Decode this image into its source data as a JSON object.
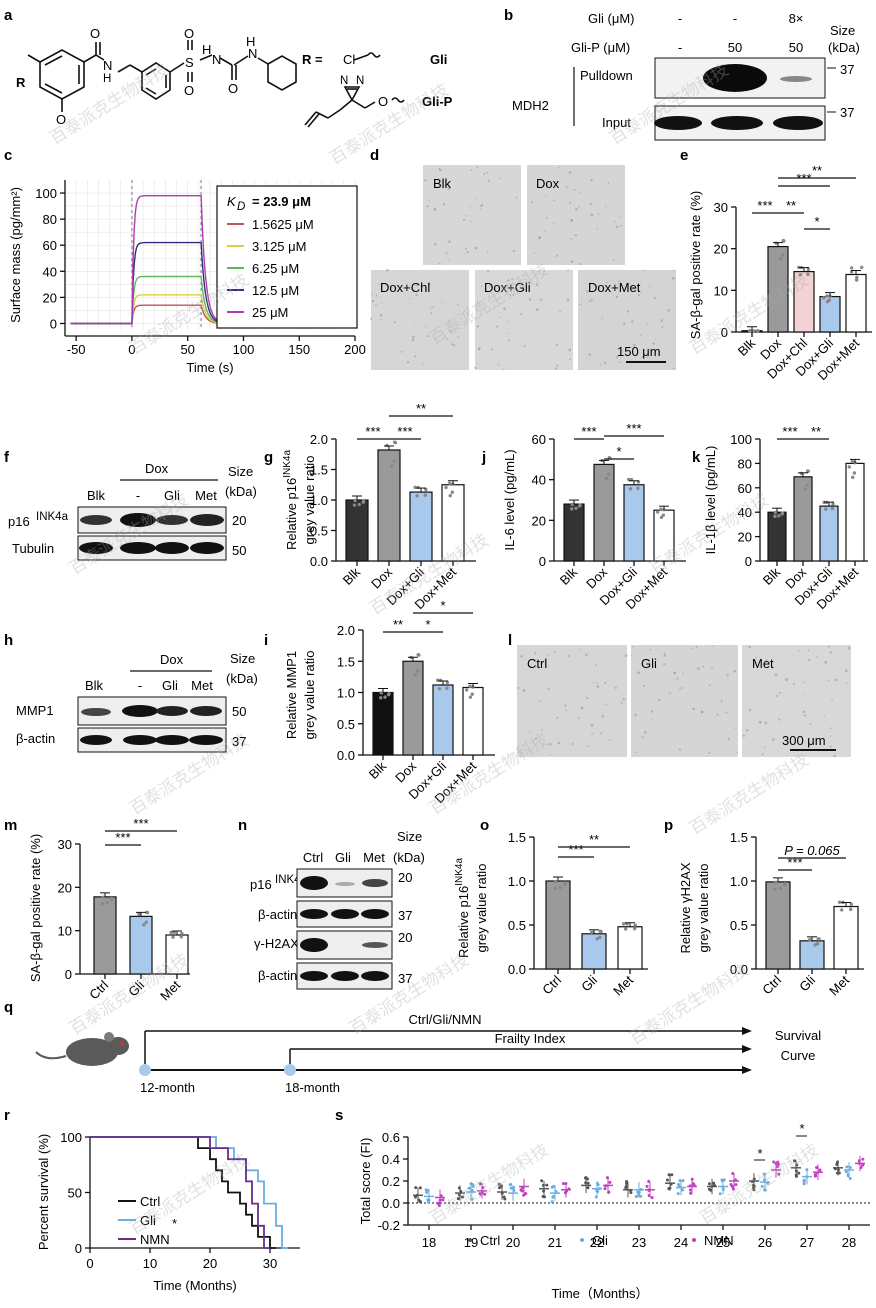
{
  "panels": {
    "a": "a",
    "b": "b",
    "c": "c",
    "d": "d",
    "e": "e",
    "f": "f",
    "g": "g",
    "h": "h",
    "i": "i",
    "j": "j",
    "k": "k",
    "l": "l",
    "m": "m",
    "n": "n",
    "o": "o",
    "p": "p",
    "q": "q",
    "r": "r",
    "s": "s"
  },
  "panel_a": {
    "r_label": "R",
    "r_eq": "R =",
    "gli": "Gli",
    "glip": "Gli-P",
    "cl": "Cl",
    "o": "O",
    "h": "H",
    "n": "N",
    "s": "S"
  },
  "panel_b": {
    "gli_uM": "Gli (μM)",
    "glip_uM": "Gli-P (μM)",
    "size_kda": "Size",
    "kda": "(kDa)",
    "row1": [
      "-",
      "-",
      "8×"
    ],
    "row2": [
      "-",
      "50",
      "50"
    ],
    "mdh2": "MDH2",
    "pulldown": "Pulldown",
    "input": "Input",
    "m1": "37",
    "m2": "37"
  },
  "panel_c": {
    "kd": "K",
    "kd_sub": "D",
    "kd_val": "= 23.9 μM",
    "concs": [
      "1.5625 μM",
      "3.125 μM",
      "6.25 μM",
      "12.5 μM",
      "25 μM"
    ],
    "colors": [
      "#c2545a",
      "#d9d13a",
      "#5fb85f",
      "#2e2e7a",
      "#b23bb0"
    ],
    "ylabel": "Surface mass (pg/mm²)",
    "xlabel": "Time (s)",
    "xticks": [
      "-50",
      "0",
      "50",
      "100",
      "150",
      "200"
    ],
    "yticks": [
      "0",
      "20",
      "40",
      "60",
      "80",
      "100"
    ]
  },
  "panel_d": {
    "labels": [
      "Blk",
      "Dox",
      "Dox+Chl",
      "Dox+Gli",
      "Dox+Met"
    ],
    "scale": "150 μm"
  },
  "panel_e": {
    "ylabel": "SA-β-gal positive rate (%)",
    "cats": [
      "Blk",
      "Dox",
      "Dox+Chl",
      "Dox+Gli",
      "Dox+Met"
    ],
    "values": [
      0.3,
      20.5,
      14.5,
      8.5,
      13.8
    ],
    "colors": [
      "#333333",
      "#9a9a9a",
      "#f3d1d4",
      "#a9c9ec",
      "#ffffff"
    ],
    "ylim": [
      0,
      30
    ],
    "yticks": [
      "0",
      "10",
      "20",
      "30"
    ],
    "sig": [
      "***",
      "**",
      "***",
      "*",
      "**"
    ]
  },
  "panel_f": {
    "dox": "Dox",
    "size": "Size",
    "kda": "(kDa)",
    "lanes": [
      "Blk",
      "-",
      "Gli",
      "Met"
    ],
    "p16": "p16",
    "p16sup": "INK4a",
    "tubulin": "Tubulin",
    "m1": "20",
    "m2": "50"
  },
  "panel_g": {
    "ylabel1": "Relative p16",
    "ylabel1sup": "INK4a",
    "ylabel2": "grey value ratio",
    "cats": [
      "Blk",
      "Dox",
      "Dox+Gli",
      "Dox+Met"
    ],
    "values": [
      1.0,
      1.82,
      1.13,
      1.25
    ],
    "colors": [
      "#333333",
      "#9a9a9a",
      "#a9c9ec",
      "#ffffff"
    ],
    "ylim": [
      0,
      2.0
    ],
    "yticks": [
      "0.0",
      "0.5",
      "1.0",
      "1.5",
      "2.0"
    ],
    "sig": [
      "***",
      "***",
      "**"
    ]
  },
  "panel_j": {
    "ylabel": "IL-6 level (pg/mL)",
    "cats": [
      "Blk",
      "Dox",
      "Dox+Gli",
      "Dox+Met"
    ],
    "values": [
      28,
      47.5,
      37.5,
      25
    ],
    "colors": [
      "#333333",
      "#9a9a9a",
      "#a9c9ec",
      "#ffffff"
    ],
    "ylim": [
      0,
      60
    ],
    "yticks": [
      "0",
      "20",
      "40",
      "60"
    ],
    "sig": [
      "***",
      "*",
      "***"
    ]
  },
  "panel_k": {
    "ylabel": "IL-1β level (pg/mL)",
    "cats": [
      "Blk",
      "Dox",
      "Dox+Gli",
      "Dox+Met"
    ],
    "values": [
      40,
      69,
      45,
      80
    ],
    "colors": [
      "#333333",
      "#9a9a9a",
      "#a9c9ec",
      "#ffffff"
    ],
    "ylim": [
      0,
      100
    ],
    "yticks": [
      "0",
      "20",
      "40",
      "60",
      "80",
      "100"
    ],
    "sig": [
      "***",
      "**"
    ]
  },
  "panel_h": {
    "dox": "Dox",
    "size": "Size",
    "kda": "(kDa)",
    "lanes": [
      "Blk",
      "-",
      "Gli",
      "Met"
    ],
    "mmp1": "MMP1",
    "bactin": "β-actin",
    "m1": "50",
    "m2": "37"
  },
  "panel_i": {
    "ylabel1": "Relative MMP1",
    "ylabel2": "grey value ratio",
    "cats": [
      "Blk",
      "Dox",
      "Dox+Gli",
      "Dox+Met"
    ],
    "values": [
      1.0,
      1.5,
      1.12,
      1.08
    ],
    "colors": [
      "#111111",
      "#9a9a9a",
      "#a9c9ec",
      "#ffffff"
    ],
    "ylim": [
      0,
      2.0
    ],
    "yticks": [
      "0.0",
      "0.5",
      "1.0",
      "1.5",
      "2.0"
    ],
    "sig": [
      "**",
      "*",
      "*"
    ]
  },
  "panel_l": {
    "labels": [
      "Ctrl",
      "Gli",
      "Met"
    ],
    "scale": "300 μm"
  },
  "panel_m": {
    "ylabel": "SA-β-gal positive rate (%)",
    "cats": [
      "Ctrl",
      "Gli",
      "Met"
    ],
    "values": [
      17.8,
      13.3,
      9
    ],
    "colors": [
      "#9a9a9a",
      "#a9c9ec",
      "#ffffff"
    ],
    "ylim": [
      0,
      30
    ],
    "yticks": [
      "0",
      "10",
      "20",
      "30"
    ],
    "sig": [
      "***",
      "***"
    ]
  },
  "panel_n": {
    "size": "Size",
    "kda": "(kDa)",
    "lanes": [
      "Ctrl",
      "Gli",
      "Met"
    ],
    "rows": [
      "p16",
      "β-actin",
      "γ-H2AX",
      "β-actin"
    ],
    "p16sup": "INK4a",
    "marks": [
      "20",
      "37",
      "20",
      "37"
    ]
  },
  "panel_o": {
    "ylabel1": "Relative p16",
    "ylabel1sup": "INK4a",
    "ylabel2": "grey value ratio",
    "cats": [
      "Ctrl",
      "Gli",
      "Met"
    ],
    "values": [
      1.0,
      0.4,
      0.48
    ],
    "colors": [
      "#9a9a9a",
      "#a9c9ec",
      "#ffffff"
    ],
    "ylim": [
      0,
      1.5
    ],
    "yticks": [
      "0.0",
      "0.5",
      "1.0",
      "1.5"
    ],
    "sig": [
      "***",
      "**"
    ]
  },
  "panel_p": {
    "ylabel1": "Relative γH2AX",
    "ylabel2": "grey value ratio",
    "cats": [
      "Ctrl",
      "Gli",
      "Met"
    ],
    "values": [
      0.99,
      0.32,
      0.71
    ],
    "colors": [
      "#9a9a9a",
      "#a9c9ec",
      "#ffffff"
    ],
    "ylim": [
      0,
      1.5
    ],
    "yticks": [
      "0.0",
      "0.5",
      "1.0",
      "1.5"
    ],
    "sig": [
      "***",
      "P = 0.065"
    ]
  },
  "panel_q": {
    "treat": "Ctrl/Gli/NMN",
    "frailty": "Frailty Index",
    "survival1": "Survival",
    "survival2": "Curve",
    "t12": "12-month",
    "t18": "18-month"
  },
  "panel_r": {
    "ylabel": "Percent survival (%)",
    "xlabel": "Time (Months)",
    "legend": [
      "Ctrl",
      "Gli",
      "NMN"
    ],
    "gli_star": "*",
    "colors": [
      "#111111",
      "#6aaee0",
      "#6a2b8f"
    ],
    "xticks": [
      "0",
      "10",
      "20",
      "30"
    ],
    "yticks": [
      "0",
      "50",
      "100"
    ]
  },
  "panel_s": {
    "ylabel": "Total score (FI)",
    "xlabel": "Time（Months）",
    "legend": [
      "Ctrl",
      "Gli",
      "NMN"
    ],
    "colors": [
      "#555555",
      "#6aaee0",
      "#c040c0"
    ],
    "months": [
      "18",
      "19",
      "20",
      "21",
      "22",
      "23",
      "24",
      "25",
      "26",
      "27",
      "28"
    ],
    "ctrl": [
      0.07,
      0.09,
      0.1,
      0.13,
      0.16,
      0.12,
      0.18,
      0.15,
      0.2,
      0.32,
      0.32
    ],
    "gli": [
      0.06,
      0.1,
      0.09,
      0.09,
      0.13,
      0.12,
      0.14,
      0.15,
      0.19,
      0.24,
      0.3
    ],
    "nmn": [
      0.05,
      0.11,
      0.15,
      0.12,
      0.16,
      0.12,
      0.15,
      0.2,
      0.3,
      0.28,
      0.36
    ],
    "yticks": [
      "-0.2",
      "0.0",
      "0.2",
      "0.4",
      "0.6"
    ],
    "star": "*"
  },
  "watermark": "百泰派克生物科技"
}
